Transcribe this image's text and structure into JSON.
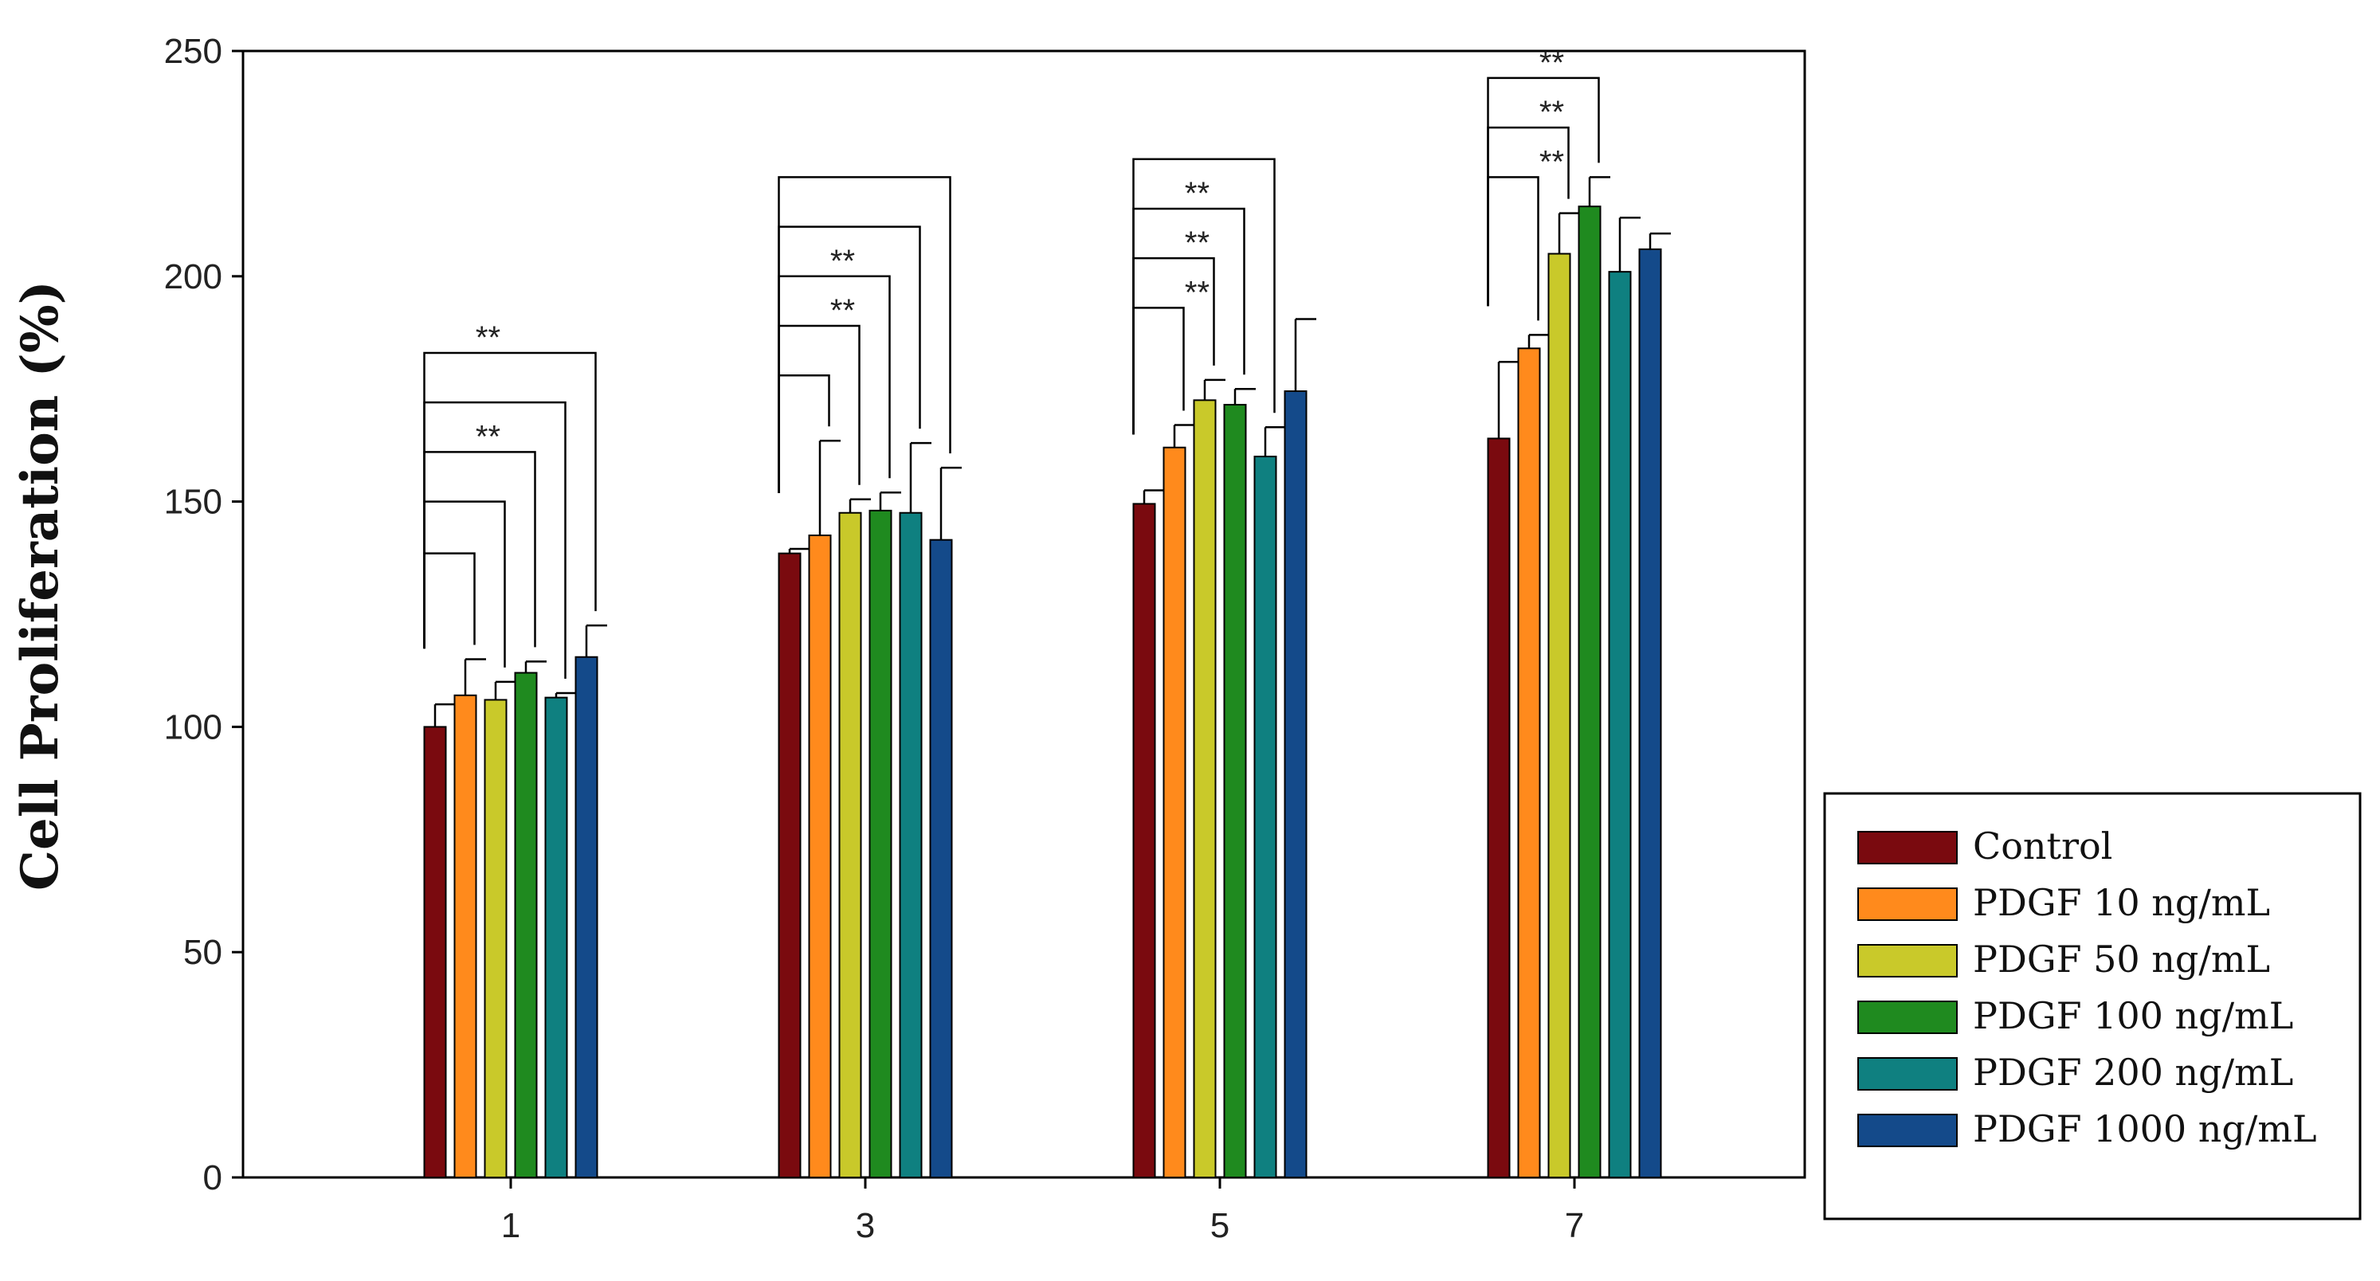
{
  "chart_data": {
    "type": "bar",
    "title": "",
    "xlabel": "",
    "ylabel": "Cell Proliferation (%)",
    "ylim": [
      0,
      250
    ],
    "yticks": [
      "0",
      "50",
      "100",
      "150",
      "200",
      "250"
    ],
    "categories": [
      "1",
      "3",
      "5",
      "7"
    ],
    "series": [
      {
        "name": "Control",
        "color": "#7a0a0f",
        "values": [
          100,
          138.5,
          149.5,
          164
        ],
        "errors": [
          5,
          1,
          3,
          17
        ]
      },
      {
        "name": "PDGF 10 ng/mL",
        "color": "#ff8a1c",
        "values": [
          107,
          142.5,
          162,
          184
        ],
        "errors": [
          8,
          21,
          5,
          3
        ]
      },
      {
        "name": "PDGF 50 ng/mL",
        "color": "#c9c92a",
        "values": [
          106,
          147.5,
          172.5,
          205
        ],
        "errors": [
          4,
          3,
          4.5,
          9
        ]
      },
      {
        "name": "PDGF 100 ng/mL",
        "color": "#1f8a1f",
        "values": [
          112,
          148,
          171.5,
          215.5
        ],
        "errors": [
          2.5,
          4,
          3.5,
          6.5
        ]
      },
      {
        "name": "PDGF 200 ng/mL",
        "color": "#0f8080",
        "values": [
          106.5,
          147.5,
          160,
          201
        ],
        "errors": [
          1,
          15.5,
          6.5,
          12
        ]
      },
      {
        "name": "PDGF 1000 ng/mL",
        "color": "#144a8a",
        "values": [
          115.5,
          141.5,
          174.5,
          206
        ],
        "errors": [
          7,
          16,
          16,
          3.5
        ]
      }
    ],
    "significance": [
      {
        "category": 0,
        "brackets": [
          {
            "from": 0,
            "to": 1,
            "y": 138.5,
            "label": ""
          },
          {
            "from": 0,
            "to": 2,
            "y": 150,
            "label": ""
          },
          {
            "from": 0,
            "to": 3,
            "y": 161,
            "label": "**"
          },
          {
            "from": 0,
            "to": 4,
            "y": 172,
            "label": ""
          },
          {
            "from": 0,
            "to": 5,
            "y": 183,
            "label": "**"
          }
        ]
      },
      {
        "category": 1,
        "brackets": [
          {
            "from": 0,
            "to": 1,
            "y": 178,
            "label": ""
          },
          {
            "from": 0,
            "to": 2,
            "y": 189,
            "label": "**"
          },
          {
            "from": 0,
            "to": 3,
            "y": 200,
            "label": "**"
          },
          {
            "from": 0,
            "to": 4,
            "y": 211,
            "label": ""
          },
          {
            "from": 0,
            "to": 5,
            "y": 222,
            "label": ""
          }
        ]
      },
      {
        "category": 2,
        "brackets": [
          {
            "from": 0,
            "to": 1,
            "y": 193,
            "label": "**"
          },
          {
            "from": 0,
            "to": 2,
            "y": 204,
            "label": "**"
          },
          {
            "from": 0,
            "to": 3,
            "y": 215,
            "label": "**"
          },
          {
            "from": 0,
            "to": 4,
            "y": 226,
            "label": ""
          }
        ]
      },
      {
        "category": 3,
        "brackets": [
          {
            "from": 0,
            "to": 1,
            "y": 222,
            "label": "**"
          },
          {
            "from": 0,
            "to": 2,
            "y": 233,
            "label": "**"
          },
          {
            "from": 0,
            "to": 3,
            "y": 244,
            "label": "**"
          }
        ]
      }
    ],
    "grid": false,
    "legend_position": "right"
  }
}
